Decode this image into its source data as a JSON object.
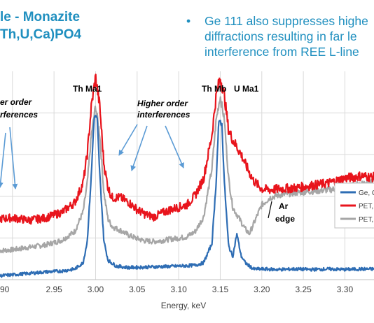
{
  "slide": {
    "title_lines": [
      "le - Monazite",
      "Th,U,Ca)PO4"
    ],
    "bullet_symbol": "•",
    "bullet_lines": [
      "Ge 111 also suppresses highe",
      "diffractions resulting in far le",
      "interference from REE L-line"
    ]
  },
  "chart_data": {
    "type": "line",
    "title": "",
    "xlabel": "Energy, keV",
    "ylabel": "",
    "xlim": [
      2.885,
      3.335
    ],
    "x_ticks": [
      "90",
      "2.95",
      "3.00",
      "3.05",
      "3.10",
      "3.15",
      "3.20",
      "3.25",
      "3.30"
    ],
    "grid": "on",
    "legend_position": "right",
    "series": [
      {
        "name": "Ge, C",
        "color": "#2e6db4",
        "points": [
          [
            2.885,
            8
          ],
          [
            2.9,
            10
          ],
          [
            2.92,
            13
          ],
          [
            2.94,
            16
          ],
          [
            2.96,
            18
          ],
          [
            2.975,
            22
          ],
          [
            2.985,
            35
          ],
          [
            2.99,
            80
          ],
          [
            2.995,
            220
          ],
          [
            2.998,
            330
          ],
          [
            3.0,
            340
          ],
          [
            3.002,
            330
          ],
          [
            3.005,
            220
          ],
          [
            3.01,
            80
          ],
          [
            3.015,
            40
          ],
          [
            3.025,
            28
          ],
          [
            3.04,
            25
          ],
          [
            3.06,
            26
          ],
          [
            3.08,
            27
          ],
          [
            3.1,
            28
          ],
          [
            3.12,
            30
          ],
          [
            3.13,
            35
          ],
          [
            3.14,
            75
          ],
          [
            3.145,
            200
          ],
          [
            3.148,
            320
          ],
          [
            3.15,
            330
          ],
          [
            3.152,
            320
          ],
          [
            3.155,
            200
          ],
          [
            3.16,
            70
          ],
          [
            3.165,
            48
          ],
          [
            3.17,
            95
          ],
          [
            3.175,
            50
          ],
          [
            3.18,
            35
          ],
          [
            3.19,
            22
          ],
          [
            3.2,
            22
          ],
          [
            3.22,
            21
          ],
          [
            3.24,
            22
          ],
          [
            3.26,
            21
          ],
          [
            3.28,
            22
          ],
          [
            3.3,
            21
          ],
          [
            3.32,
            22
          ],
          [
            3.335,
            22
          ]
        ]
      },
      {
        "name": "PET, C",
        "color": "#e8141c",
        "points": [
          [
            2.885,
            126
          ],
          [
            2.9,
            128
          ],
          [
            2.92,
            123
          ],
          [
            2.94,
            128
          ],
          [
            2.96,
            140
          ],
          [
            2.975,
            160
          ],
          [
            2.985,
            200
          ],
          [
            2.99,
            260
          ],
          [
            2.995,
            360
          ],
          [
            3.0,
            420
          ],
          [
            3.005,
            360
          ],
          [
            3.01,
            240
          ],
          [
            3.015,
            190
          ],
          [
            3.02,
            170
          ],
          [
            3.03,
            170
          ],
          [
            3.04,
            160
          ],
          [
            3.05,
            145
          ],
          [
            3.06,
            135
          ],
          [
            3.07,
            130
          ],
          [
            3.08,
            138
          ],
          [
            3.09,
            145
          ],
          [
            3.1,
            150
          ],
          [
            3.11,
            155
          ],
          [
            3.12,
            175
          ],
          [
            3.13,
            210
          ],
          [
            3.14,
            300
          ],
          [
            3.145,
            380
          ],
          [
            3.15,
            420
          ],
          [
            3.155,
            380
          ],
          [
            3.16,
            310
          ],
          [
            3.165,
            290
          ],
          [
            3.17,
            275
          ],
          [
            3.175,
            260
          ],
          [
            3.18,
            240
          ],
          [
            3.19,
            205
          ],
          [
            3.2,
            188
          ],
          [
            3.21,
            186
          ],
          [
            3.22,
            188
          ],
          [
            3.24,
            190
          ],
          [
            3.26,
            195
          ],
          [
            3.28,
            200
          ],
          [
            3.3,
            210
          ],
          [
            3.32,
            215
          ],
          [
            3.335,
            212
          ]
        ]
      },
      {
        "name": "PET, F",
        "color": "#a6a6a6",
        "points": [
          [
            2.885,
            60
          ],
          [
            2.9,
            62
          ],
          [
            2.92,
            67
          ],
          [
            2.94,
            72
          ],
          [
            2.96,
            82
          ],
          [
            2.975,
            100
          ],
          [
            2.985,
            140
          ],
          [
            2.99,
            200
          ],
          [
            2.995,
            300
          ],
          [
            3.0,
            360
          ],
          [
            3.005,
            300
          ],
          [
            3.01,
            180
          ],
          [
            3.015,
            125
          ],
          [
            3.02,
            110
          ],
          [
            3.03,
            102
          ],
          [
            3.04,
            92
          ],
          [
            3.05,
            85
          ],
          [
            3.06,
            80
          ],
          [
            3.07,
            79
          ],
          [
            3.08,
            81
          ],
          [
            3.09,
            84
          ],
          [
            3.1,
            86
          ],
          [
            3.11,
            89
          ],
          [
            3.12,
            100
          ],
          [
            3.13,
            130
          ],
          [
            3.14,
            230
          ],
          [
            3.145,
            330
          ],
          [
            3.15,
            380
          ],
          [
            3.155,
            330
          ],
          [
            3.16,
            210
          ],
          [
            3.165,
            150
          ],
          [
            3.17,
            135
          ],
          [
            3.175,
            120
          ],
          [
            3.18,
            105
          ],
          [
            3.185,
            95
          ],
          [
            3.19,
            115
          ],
          [
            3.2,
            155
          ],
          [
            3.21,
            170
          ],
          [
            3.22,
            175
          ],
          [
            3.24,
            180
          ],
          [
            3.26,
            183
          ],
          [
            3.28,
            186
          ],
          [
            3.3,
            190
          ],
          [
            3.32,
            200
          ],
          [
            3.335,
            205
          ]
        ]
      }
    ],
    "annotations": [
      {
        "id": "th-ma1",
        "text": "Th Ma1"
      },
      {
        "id": "th-mb",
        "text": "Th Mb"
      },
      {
        "id": "u-ma1",
        "text": "U Ma1"
      },
      {
        "id": "higher-order-left-1",
        "text": "er order"
      },
      {
        "id": "higher-order-left-2",
        "text": "rferences"
      },
      {
        "id": "higher-order-mid-1",
        "text": "Higher order"
      },
      {
        "id": "higher-order-mid-2",
        "text": "interferences"
      },
      {
        "id": "ar-1",
        "text": "Ar"
      },
      {
        "id": "ar-2",
        "text": "edge"
      }
    ],
    "colors": {
      "grid": "#d9d9d9",
      "arrow": "#5b9bd5",
      "axis_text": "#404040",
      "annotation_text": "#000000"
    }
  }
}
